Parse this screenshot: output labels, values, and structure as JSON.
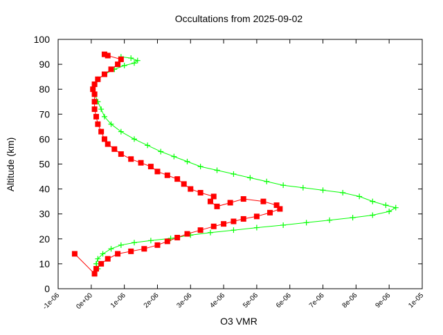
{
  "chart_data": {
    "type": "scatter",
    "title": "Occultations from 2025-09-02",
    "xlabel": "O3 VMR",
    "ylabel": "Altitude (km)",
    "xlim": [
      -1e-06,
      1e-05
    ],
    "ylim": [
      0,
      100
    ],
    "x_ticks": [
      -1e-06,
      0,
      1e-06,
      2e-06,
      3e-06,
      4e-06,
      5e-06,
      6e-06,
      7e-06,
      8e-06,
      9e-06,
      1e-05
    ],
    "x_tick_labels": [
      "-1e-06",
      "0e+00",
      "1e-06",
      "2e-06",
      "3e-06",
      "4e-06",
      "5e-06",
      "6e-06",
      "7e-06",
      "8e-06",
      "9e-06",
      "1e-05"
    ],
    "y_ticks": [
      0,
      10,
      20,
      30,
      40,
      50,
      60,
      70,
      80,
      90,
      100
    ],
    "y_tick_labels": [
      "0",
      "10",
      "20",
      "30",
      "40",
      "50",
      "60",
      "70",
      "80",
      "90",
      "100"
    ],
    "grid": false,
    "legend": "none",
    "series": [
      {
        "color": "#00ff00",
        "marker": "plus",
        "points": [
          [
            2e-07,
            8
          ],
          [
            1.5e-07,
            10
          ],
          [
            2e-07,
            12
          ],
          [
            3.5e-07,
            14
          ],
          [
            6e-07,
            16
          ],
          [
            9e-07,
            17.5
          ],
          [
            1.3e-06,
            18.5
          ],
          [
            1.8e-06,
            19.3
          ],
          [
            2.4e-06,
            20.2
          ],
          [
            3e-06,
            21.5
          ],
          [
            3.6e-06,
            22.5
          ],
          [
            4.3e-06,
            23.5
          ],
          [
            5e-06,
            24.5
          ],
          [
            5.8e-06,
            25.5
          ],
          [
            6.5e-06,
            26.5
          ],
          [
            7.2e-06,
            27.5
          ],
          [
            7.9e-06,
            28.5
          ],
          [
            8.5e-06,
            29.5
          ],
          [
            9e-06,
            31
          ],
          [
            9.2e-06,
            32.5
          ],
          [
            8.9e-06,
            33.5
          ],
          [
            8.5e-06,
            35
          ],
          [
            8.1e-06,
            37
          ],
          [
            7.6e-06,
            38.5
          ],
          [
            7e-06,
            39.5
          ],
          [
            6.4e-06,
            40.5
          ],
          [
            5.8e-06,
            41.5
          ],
          [
            5.3e-06,
            43
          ],
          [
            4.8e-06,
            44.5
          ],
          [
            4.3e-06,
            46
          ],
          [
            3.8e-06,
            47.5
          ],
          [
            3.3e-06,
            49
          ],
          [
            2.9e-06,
            51
          ],
          [
            2.5e-06,
            53
          ],
          [
            2.1e-06,
            55
          ],
          [
            1.7e-06,
            57.5
          ],
          [
            1.3e-06,
            60
          ],
          [
            9e-07,
            63
          ],
          [
            6e-07,
            66
          ],
          [
            4e-07,
            69
          ],
          [
            3e-07,
            72
          ],
          [
            2e-07,
            75
          ],
          [
            1e-07,
            78
          ],
          [
            5e-08,
            80
          ],
          [
            1e-07,
            82
          ],
          [
            2e-07,
            84
          ],
          [
            4e-07,
            86
          ],
          [
            7e-07,
            88
          ],
          [
            1e-06,
            89.5
          ],
          [
            1.3e-06,
            90.5
          ],
          [
            1.4e-06,
            91.5
          ],
          [
            1.2e-06,
            92.5
          ],
          [
            9e-07,
            93
          ]
        ]
      },
      {
        "color": "#ff0000",
        "marker": "square",
        "points": [
          [
            -5e-07,
            14
          ],
          [
            1e-07,
            6
          ],
          [
            1.5e-07,
            8
          ],
          [
            3e-07,
            10
          ],
          [
            5e-07,
            12
          ],
          [
            8e-07,
            14
          ],
          [
            1.2e-06,
            15
          ],
          [
            1.6e-06,
            16
          ],
          [
            2e-06,
            17.5
          ],
          [
            2.3e-06,
            19
          ],
          [
            2.6e-06,
            20.5
          ],
          [
            2.9e-06,
            22
          ],
          [
            3.3e-06,
            23.5
          ],
          [
            3.7e-06,
            25
          ],
          [
            4e-06,
            26
          ],
          [
            4.3e-06,
            27
          ],
          [
            4.6e-06,
            28
          ],
          [
            5e-06,
            29
          ],
          [
            5.4e-06,
            30.5
          ],
          [
            5.7e-06,
            32
          ],
          [
            5.6e-06,
            33.5
          ],
          [
            5.2e-06,
            35
          ],
          [
            4.6e-06,
            36
          ],
          [
            4.2e-06,
            34.5
          ],
          [
            3.8e-06,
            33
          ],
          [
            3.6e-06,
            35
          ],
          [
            3.7e-06,
            37
          ],
          [
            3.3e-06,
            38.5
          ],
          [
            3e-06,
            40
          ],
          [
            2.8e-06,
            42
          ],
          [
            2.6e-06,
            44
          ],
          [
            2.3e-06,
            45.5
          ],
          [
            2e-06,
            47
          ],
          [
            1.8e-06,
            49
          ],
          [
            1.5e-06,
            50.5
          ],
          [
            1.2e-06,
            52
          ],
          [
            9e-07,
            54
          ],
          [
            7e-07,
            56
          ],
          [
            5e-07,
            58
          ],
          [
            4e-07,
            60
          ],
          [
            3e-07,
            63
          ],
          [
            2e-07,
            66
          ],
          [
            1.5e-07,
            69
          ],
          [
            1e-07,
            72
          ],
          [
            1e-07,
            75
          ],
          [
            1e-07,
            78
          ],
          [
            5e-08,
            80
          ],
          [
            1e-07,
            82
          ],
          [
            2e-07,
            84
          ],
          [
            4e-07,
            86
          ],
          [
            6e-07,
            88
          ],
          [
            8e-07,
            90
          ],
          [
            9e-07,
            92
          ],
          [
            5e-07,
            93.5
          ],
          [
            4e-07,
            94
          ]
        ]
      }
    ]
  }
}
